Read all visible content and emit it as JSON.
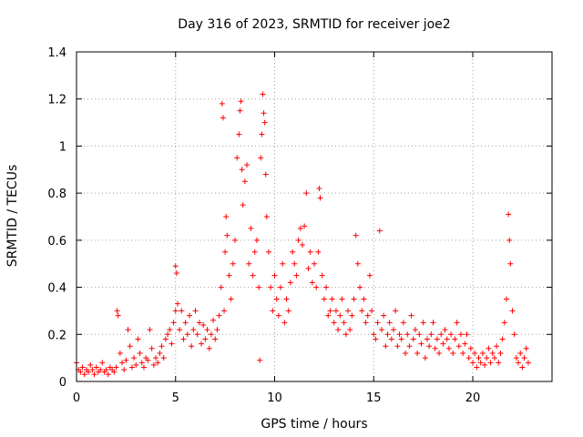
{
  "chart_data": {
    "type": "scatter",
    "title": "Day 316 of 2023, SRMTID for receiver joe2",
    "xlabel": "GPS time / hours",
    "ylabel": "SRMTID / TECUs",
    "xlim": [
      0,
      24
    ],
    "ylim": [
      0,
      1.4
    ],
    "xticks": [
      0,
      5,
      10,
      15,
      20
    ],
    "xtick_labels": [
      "0",
      "5",
      "10",
      "15",
      "20"
    ],
    "yticks": [
      0,
      0.2,
      0.4,
      0.6,
      0.8,
      1.0,
      1.2,
      1.4
    ],
    "ytick_labels": [
      "0",
      "0.2",
      "0.4",
      "0.6",
      "0.8",
      "1",
      "1.2",
      "1.4"
    ],
    "grid": true,
    "marker": "+",
    "series": [
      {
        "name": "SRMTID joe2",
        "color": "#ff0000",
        "points": [
          [
            0.0,
            0.08
          ],
          [
            0.1,
            0.05
          ],
          [
            0.2,
            0.04
          ],
          [
            0.3,
            0.06
          ],
          [
            0.4,
            0.03
          ],
          [
            0.5,
            0.05
          ],
          [
            0.6,
            0.04
          ],
          [
            0.7,
            0.07
          ],
          [
            0.8,
            0.05
          ],
          [
            0.9,
            0.03
          ],
          [
            1.0,
            0.06
          ],
          [
            1.1,
            0.04
          ],
          [
            1.2,
            0.05
          ],
          [
            1.3,
            0.08
          ],
          [
            1.4,
            0.04
          ],
          [
            1.5,
            0.05
          ],
          [
            1.6,
            0.03
          ],
          [
            1.7,
            0.06
          ],
          [
            1.8,
            0.05
          ],
          [
            1.9,
            0.04
          ],
          [
            2.0,
            0.06
          ],
          [
            2.05,
            0.3
          ],
          [
            2.1,
            0.28
          ],
          [
            2.2,
            0.12
          ],
          [
            2.3,
            0.08
          ],
          [
            2.4,
            0.05
          ],
          [
            2.5,
            0.09
          ],
          [
            2.6,
            0.22
          ],
          [
            2.7,
            0.15
          ],
          [
            2.8,
            0.06
          ],
          [
            2.9,
            0.1
          ],
          [
            3.0,
            0.07
          ],
          [
            3.1,
            0.18
          ],
          [
            3.2,
            0.12
          ],
          [
            3.3,
            0.08
          ],
          [
            3.4,
            0.06
          ],
          [
            3.5,
            0.1
          ],
          [
            3.6,
            0.09
          ],
          [
            3.7,
            0.22
          ],
          [
            3.8,
            0.14
          ],
          [
            3.9,
            0.07
          ],
          [
            4.0,
            0.1
          ],
          [
            4.1,
            0.08
          ],
          [
            4.2,
            0.12
          ],
          [
            4.3,
            0.15
          ],
          [
            4.4,
            0.1
          ],
          [
            4.5,
            0.18
          ],
          [
            4.6,
            0.2
          ],
          [
            4.7,
            0.22
          ],
          [
            4.8,
            0.16
          ],
          [
            4.9,
            0.25
          ],
          [
            5.0,
            0.3
          ],
          [
            5.0,
            0.49
          ],
          [
            5.05,
            0.46
          ],
          [
            5.1,
            0.33
          ],
          [
            5.2,
            0.22
          ],
          [
            5.3,
            0.3
          ],
          [
            5.4,
            0.18
          ],
          [
            5.5,
            0.25
          ],
          [
            5.6,
            0.2
          ],
          [
            5.7,
            0.28
          ],
          [
            5.8,
            0.15
          ],
          [
            5.9,
            0.22
          ],
          [
            6.0,
            0.3
          ],
          [
            6.1,
            0.2
          ],
          [
            6.2,
            0.25
          ],
          [
            6.3,
            0.16
          ],
          [
            6.4,
            0.24
          ],
          [
            6.5,
            0.18
          ],
          [
            6.6,
            0.22
          ],
          [
            6.7,
            0.14
          ],
          [
            6.8,
            0.2
          ],
          [
            6.9,
            0.26
          ],
          [
            7.0,
            0.18
          ],
          [
            7.1,
            0.22
          ],
          [
            7.2,
            0.28
          ],
          [
            7.3,
            0.4
          ],
          [
            7.35,
            1.18
          ],
          [
            7.4,
            1.12
          ],
          [
            7.45,
            0.3
          ],
          [
            7.5,
            0.55
          ],
          [
            7.55,
            0.7
          ],
          [
            7.6,
            0.62
          ],
          [
            7.7,
            0.45
          ],
          [
            7.8,
            0.35
          ],
          [
            7.9,
            0.5
          ],
          [
            8.0,
            0.6
          ],
          [
            8.1,
            0.95
          ],
          [
            8.2,
            1.05
          ],
          [
            8.25,
            1.15
          ],
          [
            8.3,
            1.19
          ],
          [
            8.35,
            0.9
          ],
          [
            8.4,
            0.75
          ],
          [
            8.5,
            0.85
          ],
          [
            8.6,
            0.92
          ],
          [
            8.7,
            0.5
          ],
          [
            8.8,
            0.65
          ],
          [
            8.9,
            0.45
          ],
          [
            9.0,
            0.55
          ],
          [
            9.1,
            0.6
          ],
          [
            9.2,
            0.4
          ],
          [
            9.25,
            0.09
          ],
          [
            9.3,
            0.95
          ],
          [
            9.35,
            1.05
          ],
          [
            9.4,
            1.22
          ],
          [
            9.45,
            1.14
          ],
          [
            9.5,
            1.1
          ],
          [
            9.55,
            0.88
          ],
          [
            9.6,
            0.7
          ],
          [
            9.7,
            0.55
          ],
          [
            9.8,
            0.4
          ],
          [
            9.9,
            0.3
          ],
          [
            10.0,
            0.45
          ],
          [
            10.1,
            0.35
          ],
          [
            10.2,
            0.28
          ],
          [
            10.3,
            0.4
          ],
          [
            10.4,
            0.5
          ],
          [
            10.5,
            0.25
          ],
          [
            10.6,
            0.35
          ],
          [
            10.7,
            0.3
          ],
          [
            10.8,
            0.42
          ],
          [
            10.9,
            0.55
          ],
          [
            11.0,
            0.5
          ],
          [
            11.1,
            0.45
          ],
          [
            11.2,
            0.6
          ],
          [
            11.3,
            0.65
          ],
          [
            11.4,
            0.58
          ],
          [
            11.5,
            0.66
          ],
          [
            11.6,
            0.8
          ],
          [
            11.7,
            0.48
          ],
          [
            11.8,
            0.55
          ],
          [
            11.9,
            0.42
          ],
          [
            12.0,
            0.5
          ],
          [
            12.1,
            0.4
          ],
          [
            12.2,
            0.55
          ],
          [
            12.25,
            0.82
          ],
          [
            12.3,
            0.78
          ],
          [
            12.4,
            0.45
          ],
          [
            12.5,
            0.35
          ],
          [
            12.6,
            0.4
          ],
          [
            12.7,
            0.28
          ],
          [
            12.8,
            0.3
          ],
          [
            12.9,
            0.35
          ],
          [
            13.0,
            0.25
          ],
          [
            13.1,
            0.3
          ],
          [
            13.2,
            0.22
          ],
          [
            13.3,
            0.28
          ],
          [
            13.4,
            0.35
          ],
          [
            13.5,
            0.25
          ],
          [
            13.6,
            0.2
          ],
          [
            13.7,
            0.3
          ],
          [
            13.8,
            0.22
          ],
          [
            13.9,
            0.28
          ],
          [
            14.0,
            0.35
          ],
          [
            14.1,
            0.62
          ],
          [
            14.2,
            0.5
          ],
          [
            14.3,
            0.4
          ],
          [
            14.4,
            0.3
          ],
          [
            14.5,
            0.35
          ],
          [
            14.6,
            0.25
          ],
          [
            14.7,
            0.28
          ],
          [
            14.8,
            0.45
          ],
          [
            14.9,
            0.3
          ],
          [
            15.0,
            0.2
          ],
          [
            15.1,
            0.18
          ],
          [
            15.2,
            0.25
          ],
          [
            15.3,
            0.64
          ],
          [
            15.4,
            0.22
          ],
          [
            15.5,
            0.28
          ],
          [
            15.6,
            0.15
          ],
          [
            15.7,
            0.2
          ],
          [
            15.8,
            0.25
          ],
          [
            15.9,
            0.18
          ],
          [
            16.0,
            0.22
          ],
          [
            16.1,
            0.3
          ],
          [
            16.2,
            0.15
          ],
          [
            16.3,
            0.2
          ],
          [
            16.4,
            0.18
          ],
          [
            16.5,
            0.25
          ],
          [
            16.6,
            0.12
          ],
          [
            16.7,
            0.2
          ],
          [
            16.8,
            0.15
          ],
          [
            16.9,
            0.28
          ],
          [
            17.0,
            0.18
          ],
          [
            17.1,
            0.22
          ],
          [
            17.2,
            0.12
          ],
          [
            17.3,
            0.2
          ],
          [
            17.4,
            0.16
          ],
          [
            17.5,
            0.25
          ],
          [
            17.6,
            0.1
          ],
          [
            17.7,
            0.18
          ],
          [
            17.8,
            0.15
          ],
          [
            17.9,
            0.2
          ],
          [
            18.0,
            0.25
          ],
          [
            18.1,
            0.14
          ],
          [
            18.2,
            0.18
          ],
          [
            18.3,
            0.12
          ],
          [
            18.4,
            0.2
          ],
          [
            18.5,
            0.16
          ],
          [
            18.6,
            0.22
          ],
          [
            18.7,
            0.18
          ],
          [
            18.8,
            0.14
          ],
          [
            18.9,
            0.2
          ],
          [
            19.0,
            0.12
          ],
          [
            19.1,
            0.18
          ],
          [
            19.2,
            0.25
          ],
          [
            19.3,
            0.15
          ],
          [
            19.4,
            0.2
          ],
          [
            19.5,
            0.12
          ],
          [
            19.6,
            0.16
          ],
          [
            19.7,
            0.2
          ],
          [
            19.8,
            0.1
          ],
          [
            19.9,
            0.14
          ],
          [
            20.0,
            0.08
          ],
          [
            20.1,
            0.12
          ],
          [
            20.2,
            0.06
          ],
          [
            20.3,
            0.1
          ],
          [
            20.4,
            0.08
          ],
          [
            20.5,
            0.12
          ],
          [
            20.6,
            0.07
          ],
          [
            20.7,
            0.1
          ],
          [
            20.8,
            0.14
          ],
          [
            20.9,
            0.08
          ],
          [
            21.0,
            0.12
          ],
          [
            21.1,
            0.1
          ],
          [
            21.2,
            0.15
          ],
          [
            21.3,
            0.08
          ],
          [
            21.4,
            0.12
          ],
          [
            21.5,
            0.18
          ],
          [
            21.6,
            0.25
          ],
          [
            21.7,
            0.35
          ],
          [
            21.8,
            0.71
          ],
          [
            21.85,
            0.6
          ],
          [
            21.9,
            0.5
          ],
          [
            22.0,
            0.3
          ],
          [
            22.1,
            0.2
          ],
          [
            22.2,
            0.1
          ],
          [
            22.3,
            0.08
          ],
          [
            22.4,
            0.12
          ],
          [
            22.5,
            0.06
          ],
          [
            22.6,
            0.1
          ],
          [
            22.7,
            0.14
          ],
          [
            22.8,
            0.08
          ]
        ]
      }
    ]
  }
}
